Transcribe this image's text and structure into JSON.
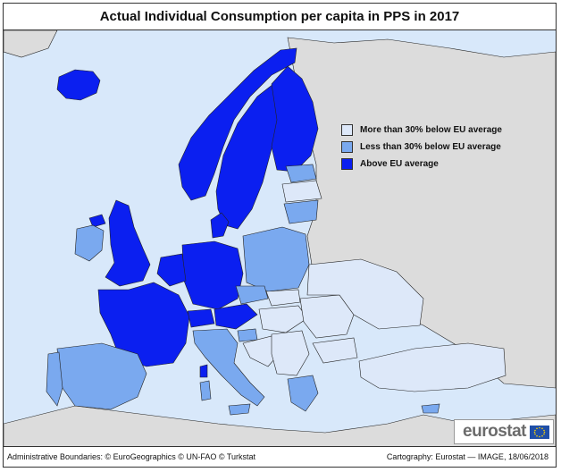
{
  "title": "Actual Individual Consumption per capita in PPS in 2017",
  "colors": {
    "sea": "#d8e8fa",
    "non_eu_land": "#dcdcdc",
    "more_than_30_below": "#dde8f9",
    "less_than_30_below": "#7aa9ef",
    "above_average": "#0b1ff0",
    "border": "#222222"
  },
  "legend": {
    "placement": "top-right",
    "items": [
      {
        "label": "More than 30% below EU average",
        "color": "#dde8f9"
      },
      {
        "label": "Less than 30% below EU average",
        "color": "#7aa9ef"
      },
      {
        "label": "Above EU average",
        "color": "#0b1ff0"
      }
    ]
  },
  "logo": {
    "text": "eurostat"
  },
  "footer": {
    "left": "Administrative Boundaries: © EuroGeographics © UN-FAO © Turkstat",
    "right": "Cartography: Eurostat — IMAGE, 18/06/2018"
  }
}
